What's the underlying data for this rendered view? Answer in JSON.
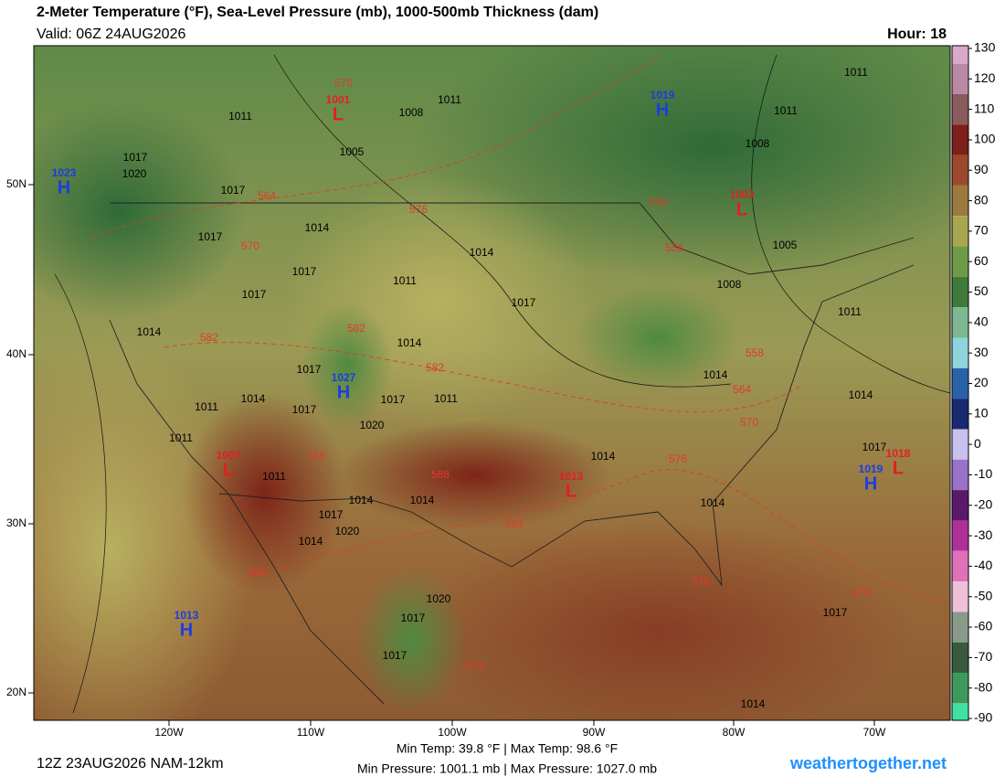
{
  "header": {
    "title": "2-Meter Temperature (°F), Sea-Level Pressure (mb), 1000-500mb Thickness (dam)",
    "valid": "Valid: 06Z 24AUG2026",
    "hour": "Hour: 18"
  },
  "colorbar": {
    "ticks": [
      130,
      120,
      110,
      100,
      90,
      80,
      70,
      60,
      50,
      40,
      30,
      20,
      10,
      0,
      -10,
      -20,
      -30,
      -40,
      -50,
      -60,
      -70,
      -80,
      -90
    ],
    "colors": [
      "#d9a9c9",
      "#b98aa5",
      "#8a5a5c",
      "#7d1f1a",
      "#9a4a2a",
      "#9c7a3e",
      "#a8a650",
      "#6e9c46",
      "#3f7a3a",
      "#7fb890",
      "#8fd4dc",
      "#2a62a8",
      "#1a2a70",
      "#c9c0ee",
      "#9a72c8",
      "#5a1a6a",
      "#b0309a",
      "#e070b8",
      "#efc0d8",
      "#8a9a8a",
      "#3a5a40",
      "#3e9a5a",
      "#40e0a0"
    ]
  },
  "lon_labels": [
    "120W",
    "110W",
    "100W",
    "90W",
    "80W",
    "70W"
  ],
  "lat_labels": [
    "50N",
    "40N",
    "30N",
    "20N"
  ],
  "pressure_centers": [
    {
      "type": "L",
      "value": 1001
    },
    {
      "type": "H",
      "value": 1019
    },
    {
      "type": "H",
      "value": 1023
    },
    {
      "type": "L",
      "value": 1003
    },
    {
      "type": "H",
      "value": 1027
    },
    {
      "type": "L",
      "value": 1007
    },
    {
      "type": "L",
      "value": 1013
    },
    {
      "type": "H",
      "value": 1019
    },
    {
      "type": "L",
      "value": 1018
    },
    {
      "type": "H",
      "value": 1013
    }
  ],
  "isobar_labels": [
    1011,
    1011,
    1008,
    1005,
    1017,
    1020,
    1017,
    1014,
    1017,
    1014,
    1017,
    1017,
    1011,
    1017,
    1014,
    1014,
    1017,
    1011,
    1014,
    1017,
    1011,
    1017,
    1020,
    1011,
    1011,
    1014,
    1014,
    1017,
    1020,
    1014,
    1014,
    1014,
    1014,
    1014,
    1017,
    1011,
    1011,
    1008,
    1005,
    1008,
    1011,
    1020,
    1017,
    1017,
    1017,
    1014
  ],
  "thickness_labels": [
    570,
    564,
    576,
    570,
    582,
    582,
    582,
    588,
    588,
    582,
    582,
    576,
    576,
    576,
    570,
    564,
    558,
    558,
    558,
    576
  ],
  "footer": {
    "run": "12Z 23AUG2026 NAM-12km",
    "temp_range": "Min Temp:  39.8 °F | Max Temp:  98.6 °F",
    "pressure_range": "Min Pressure: 1001.1 mb | Max Pressure: 1027.0 mb",
    "site": "weathertogether.net"
  }
}
